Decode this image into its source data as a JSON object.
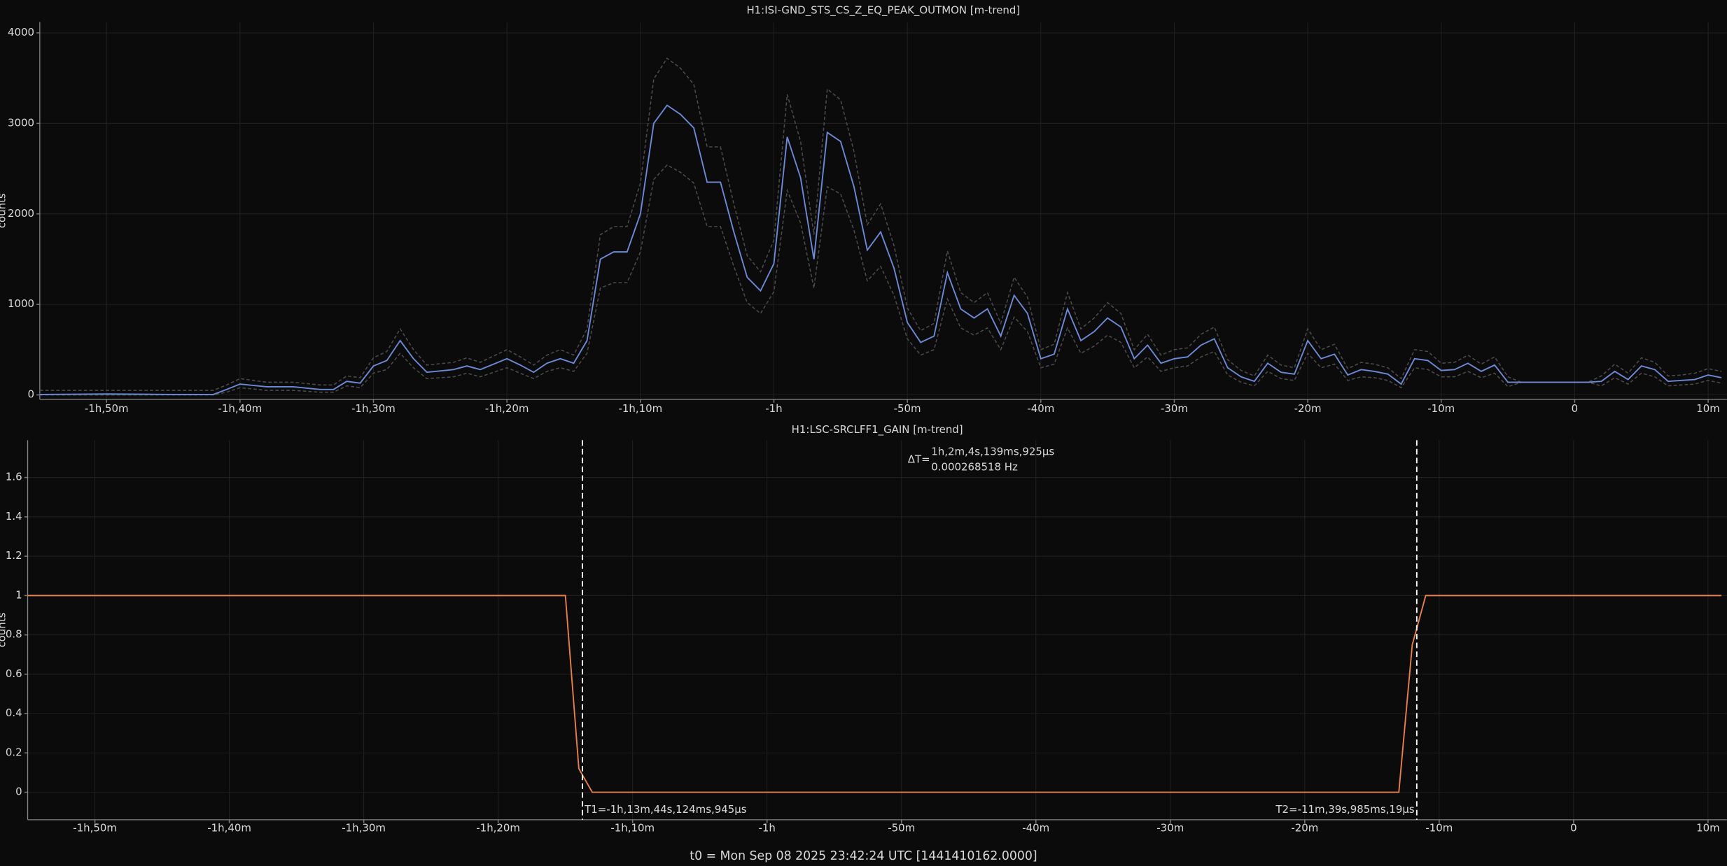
{
  "chart_data": [
    {
      "type": "line",
      "title": "H1:ISI-GND_STS_CS_Z_EQ_PEAK_OUTMON [m-trend]",
      "y_label": "counts",
      "xlim": [
        -115,
        11.4
      ],
      "ylim": [
        -50,
        4120
      ],
      "grid": true,
      "xticks": [
        {
          "value": -110,
          "label": "-1h,50m"
        },
        {
          "value": -100,
          "label": "-1h,40m"
        },
        {
          "value": -90,
          "label": "-1h,30m"
        },
        {
          "value": -80,
          "label": "-1h,20m"
        },
        {
          "value": -70,
          "label": "-1h,10m"
        },
        {
          "value": -60,
          "label": "-1h"
        },
        {
          "value": -50,
          "label": "-50m"
        },
        {
          "value": -40,
          "label": "-40m"
        },
        {
          "value": -30,
          "label": "-30m"
        },
        {
          "value": -20,
          "label": "-20m"
        },
        {
          "value": -10,
          "label": "-10m"
        },
        {
          "value": 0,
          "label": "0"
        },
        {
          "value": 10,
          "label": "10m"
        }
      ],
      "yticks": [
        0,
        1000,
        2000,
        3000,
        4000
      ],
      "x": [
        -115,
        -110,
        -105,
        -102,
        -101,
        -100,
        -98,
        -96,
        -94,
        -93,
        -92,
        -91,
        -90,
        -89,
        -88,
        -87,
        -86,
        -84,
        -83,
        -82,
        -80,
        -79,
        -78,
        -77,
        -76,
        -75,
        -74,
        -73,
        -72,
        -71,
        -70,
        -69,
        -68,
        -67,
        -66,
        -65,
        -64,
        -63,
        -62,
        -61,
        -60,
        -59,
        -58,
        -57,
        -56,
        -55,
        -54,
        -53,
        -52,
        -51,
        -50,
        -49,
        -48,
        -47,
        -46,
        -45,
        -44,
        -43,
        -42,
        -41,
        -40,
        -39,
        -38,
        -37,
        -36,
        -35,
        -34,
        -33,
        -32,
        -31,
        -30,
        -29,
        -28,
        -27,
        -26,
        -25,
        -24,
        -23,
        -22,
        -21,
        -20,
        -19,
        -18,
        -17,
        -16,
        -15,
        -14,
        -13,
        -12,
        -11,
        -10,
        -9,
        -8,
        -7,
        -6,
        -5,
        -4,
        -3,
        -2,
        -1,
        0,
        1,
        2,
        3,
        4,
        5,
        6,
        7,
        8,
        9,
        10,
        11
      ],
      "series": [
        {
          "color": "#4a4a4a",
          "style": "dashed",
          "values": [
            50,
            50,
            50,
            50,
            110,
            180,
            140,
            140,
            110,
            110,
            210,
            190,
            410,
            480,
            730,
            500,
            330,
            360,
            410,
            360,
            500,
            420,
            330,
            440,
            500,
            440,
            730,
            1770,
            1860,
            1860,
            2340,
            3490,
            3720,
            3610,
            3430,
            2740,
            2740,
            2110,
            1540,
            1360,
            1710,
            3320,
            2800,
            1770,
            3380,
            3260,
            2690,
            1880,
            2110,
            1650,
            960,
            710,
            790,
            1590,
            1130,
            1020,
            1130,
            790,
            1300,
            1080,
            500,
            560,
            1130,
            730,
            850,
            1020,
            900,
            500,
            670,
            440,
            500,
            520,
            670,
            750,
            390,
            270,
            210,
            440,
            330,
            300,
            730,
            500,
            560,
            290,
            360,
            340,
            300,
            180,
            500,
            480,
            350,
            360,
            440,
            340,
            420,
            200,
            140,
            140,
            140,
            140,
            140,
            140,
            210,
            340,
            240,
            410,
            360,
            210,
            220,
            240,
            290,
            260
          ]
        },
        {
          "color": "#4a4a4a",
          "style": "dashed",
          "values": [
            0,
            0,
            0,
            0,
            30,
            80,
            50,
            50,
            30,
            30,
            100,
            80,
            240,
            280,
            460,
            300,
            180,
            200,
            240,
            200,
            300,
            240,
            180,
            260,
            300,
            260,
            460,
            1180,
            1240,
            1240,
            1580,
            2380,
            2540,
            2460,
            2340,
            1860,
            1860,
            1420,
            1020,
            900,
            1140,
            2260,
            1900,
            1180,
            2300,
            2220,
            1820,
            1260,
            1420,
            1100,
            620,
            440,
            500,
            1060,
            740,
            660,
            740,
            500,
            860,
            700,
            300,
            340,
            740,
            460,
            540,
            660,
            580,
            300,
            420,
            260,
            300,
            320,
            420,
            480,
            220,
            140,
            100,
            260,
            180,
            160,
            460,
            300,
            340,
            160,
            200,
            190,
            160,
            80,
            300,
            280,
            200,
            200,
            260,
            190,
            240,
            90,
            140,
            140,
            140,
            140,
            140,
            140,
            100,
            190,
            120,
            240,
            200,
            100,
            110,
            120,
            160,
            130
          ]
        },
        {
          "color": "#6c8ad6",
          "style": "solid",
          "values": [
            5,
            10,
            5,
            5,
            60,
            120,
            90,
            90,
            60,
            60,
            150,
            130,
            320,
            380,
            600,
            400,
            250,
            280,
            320,
            280,
            400,
            330,
            250,
            350,
            400,
            350,
            600,
            1500,
            1580,
            1580,
            2000,
            3000,
            3200,
            3100,
            2950,
            2350,
            2350,
            1800,
            1300,
            1150,
            1450,
            2850,
            2400,
            1500,
            2900,
            2800,
            2300,
            1600,
            1800,
            1400,
            800,
            580,
            650,
            1350,
            950,
            850,
            950,
            650,
            1100,
            900,
            400,
            450,
            950,
            600,
            700,
            850,
            750,
            400,
            550,
            350,
            400,
            420,
            550,
            620,
            300,
            200,
            150,
            350,
            250,
            230,
            600,
            400,
            450,
            220,
            280,
            260,
            230,
            120,
            400,
            380,
            270,
            280,
            350,
            260,
            330,
            140,
            140,
            140,
            140,
            140,
            140,
            140,
            150,
            260,
            170,
            320,
            280,
            150,
            160,
            170,
            220,
            190
          ]
        }
      ]
    },
    {
      "type": "line",
      "title": "H1:LSC-SRCLFF1_GAIN [m-trend]",
      "y_label": "counts",
      "xlim": [
        -115,
        11.4
      ],
      "ylim": [
        -0.14,
        1.79
      ],
      "grid": true,
      "xticks": [
        {
          "value": -110,
          "label": "-1h,50m"
        },
        {
          "value": -100,
          "label": "-1h,40m"
        },
        {
          "value": -90,
          "label": "-1h,30m"
        },
        {
          "value": -80,
          "label": "-1h,20m"
        },
        {
          "value": -70,
          "label": "-1h,10m"
        },
        {
          "value": -60,
          "label": "-1h"
        },
        {
          "value": -50,
          "label": "-50m"
        },
        {
          "value": -40,
          "label": "-40m"
        },
        {
          "value": -30,
          "label": "-30m"
        },
        {
          "value": -20,
          "label": "-20m"
        },
        {
          "value": -10,
          "label": "-10m"
        },
        {
          "value": 0,
          "label": "0"
        },
        {
          "value": 10,
          "label": "10m"
        }
      ],
      "yticks": [
        0,
        0.2,
        0.4,
        0.6,
        0.8,
        1,
        1.2,
        1.4,
        1.6
      ],
      "x": [
        -115,
        -75,
        -74,
        -73,
        -13,
        -12,
        -11,
        11
      ],
      "series": [
        {
          "color": "#e8804a",
          "style": "solid",
          "values": [
            1,
            1,
            0.12,
            0,
            0,
            0.75,
            1,
            1
          ]
        }
      ],
      "cursors": [
        {
          "value": -73.7354,
          "label": "T1=-1h,13m,44s,124ms,945μs"
        },
        {
          "value": -11.6664,
          "label": "T2=-11m,39s,985ms,19μs"
        }
      ],
      "delta": {
        "label": "ΔT=",
        "time": "1h,2m,4s,139ms,925μs",
        "frequency": "0.000268518 Hz"
      }
    }
  ],
  "footer": "t0 = Mon Sep 08 2025 23:42:24 UTC [1441410162.0000]"
}
